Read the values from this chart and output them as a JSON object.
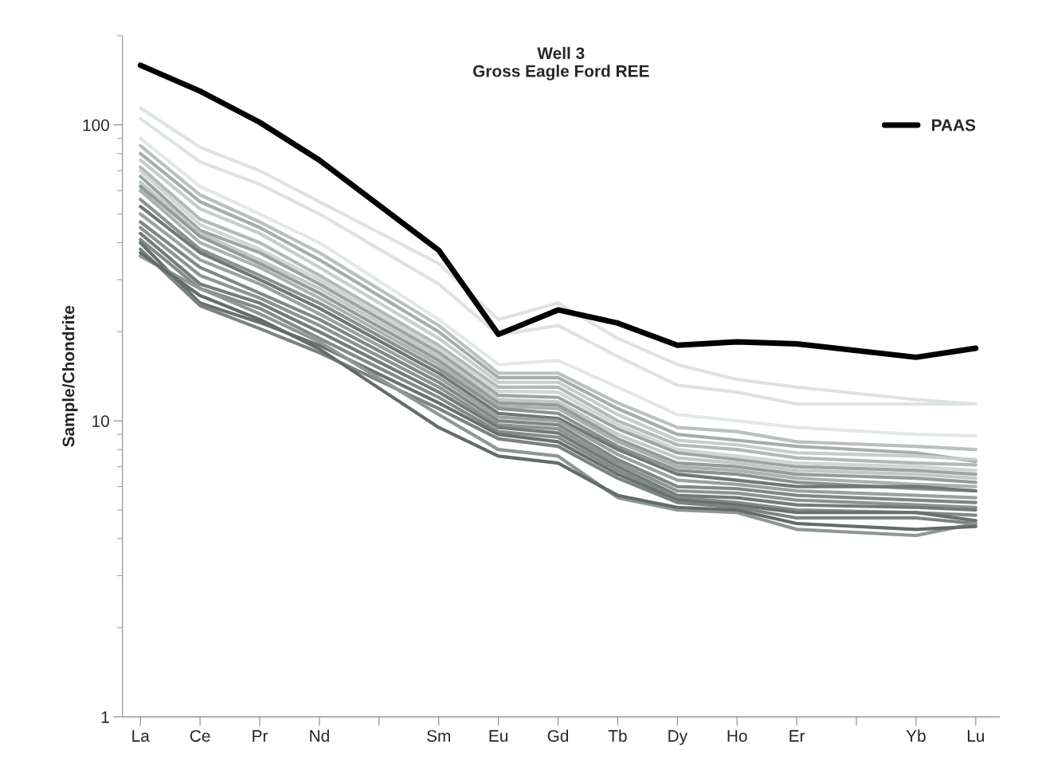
{
  "chart_data": {
    "type": "line",
    "title": "Well 3\nGross Eagle Ford REE",
    "ylabel": "Sample/Chondrite",
    "log": true,
    "ylim": [
      1,
      200
    ],
    "yticks": [
      1,
      10,
      100
    ],
    "grid": false,
    "legend": "top right",
    "marker": "none",
    "line_style": "solid",
    "categories": [
      "La",
      "Ce",
      "Pr",
      "Nd",
      null,
      "Sm",
      "Eu",
      "Gd",
      "Tb",
      "Dy",
      "Ho",
      "Er",
      null,
      "Yb",
      "Lu"
    ],
    "series": [
      {
        "color": "#dde3e1",
        "values": [
          114,
          84,
          70,
          55,
          null,
          34,
          22,
          25,
          19,
          15.5,
          13.8,
          13,
          null,
          11.8,
          11.4
        ]
      },
      {
        "color": "#dde3e1",
        "values": [
          105,
          75,
          63,
          50,
          null,
          29,
          19.5,
          21,
          16.5,
          13.2,
          12.5,
          11.4,
          null,
          11.4,
          11.4
        ]
      },
      {
        "color": "#e3e8e7",
        "values": [
          90,
          62,
          50,
          40,
          null,
          22,
          15.5,
          16,
          13,
          10.5,
          10,
          9.5,
          null,
          9,
          8.9
        ]
      },
      {
        "color": "#b9c0be",
        "values": [
          85,
          58,
          47,
          37,
          null,
          21,
          14.5,
          14.5,
          11.5,
          9.5,
          9.2,
          8.5,
          null,
          8.2,
          8.0
        ]
      },
      {
        "color": "#a6adab",
        "values": [
          80,
          55,
          45,
          35,
          null,
          20,
          14,
          14,
          11,
          9,
          8.6,
          8.2,
          null,
          7.8,
          7.3
        ]
      },
      {
        "color": "#c7cdcb",
        "values": [
          76,
          52,
          43,
          33,
          null,
          19,
          13.5,
          13.5,
          10.5,
          8.6,
          8.3,
          7.8,
          null,
          7.6,
          7.4
        ]
      },
      {
        "color": "#b2b9b7",
        "values": [
          72,
          48,
          40,
          31,
          null,
          18,
          13,
          13,
          10,
          8.3,
          8,
          7.5,
          null,
          7.2,
          7.1
        ]
      },
      {
        "color": "#d0d6d4",
        "values": [
          70,
          46,
          38,
          30,
          null,
          17.5,
          12.6,
          12.5,
          9.7,
          8.0,
          7.6,
          7.2,
          null,
          7.0,
          6.8
        ]
      },
      {
        "color": "#9da5a3",
        "values": [
          67,
          44,
          37,
          29,
          null,
          17,
          12.2,
          12,
          9.4,
          7.8,
          7.4,
          7.0,
          null,
          6.8,
          6.6
        ]
      },
      {
        "color": "#c2c8c6",
        "values": [
          64,
          43,
          35,
          28,
          null,
          16.5,
          11.8,
          11.6,
          9.0,
          7.5,
          7.2,
          6.8,
          null,
          6.6,
          6.4
        ]
      },
      {
        "color": "#949c9a",
        "values": [
          62,
          42,
          34,
          27,
          null,
          16,
          11.5,
          11.3,
          8.7,
          7.2,
          7.0,
          6.6,
          null,
          6.4,
          6.2
        ]
      },
      {
        "color": "#aab1af",
        "values": [
          60,
          40,
          33,
          26,
          null,
          15.5,
          11.2,
          11,
          8.5,
          7.0,
          6.8,
          6.4,
          null,
          6.1,
          6.0
        ]
      },
      {
        "color": "#8a9290",
        "values": [
          56,
          38,
          31,
          25,
          null,
          15,
          11,
          10.6,
          8.2,
          6.8,
          6.6,
          6.2,
          null,
          5.9,
          5.8
        ]
      },
      {
        "color": "#6f7876",
        "values": [
          53,
          37,
          30,
          24,
          null,
          14.5,
          10.6,
          10.2,
          8.0,
          6.6,
          6.3,
          6.0,
          null,
          6.0,
          5.8
        ]
      },
      {
        "color": "#9aa2a0",
        "values": [
          50,
          35,
          29,
          23,
          null,
          14,
          10.3,
          10,
          7.7,
          6.3,
          6.1,
          5.8,
          null,
          5.6,
          5.5
        ]
      },
      {
        "color": "#7f8886",
        "values": [
          47,
          33,
          27,
          22,
          null,
          13.5,
          10,
          9.7,
          7.4,
          6.0,
          5.9,
          5.6,
          null,
          5.4,
          5.3
        ]
      },
      {
        "color": "#8c9492",
        "values": [
          45,
          31,
          26,
          21,
          null,
          13,
          9.7,
          9.4,
          7.2,
          5.8,
          5.7,
          5.4,
          null,
          5.2,
          5.1
        ]
      },
      {
        "color": "#727b79",
        "values": [
          43,
          29,
          25,
          20,
          null,
          12.5,
          9.5,
          9.1,
          7.0,
          5.6,
          5.5,
          5.2,
          null,
          5.1,
          5.0
        ]
      },
      {
        "color": "#838b89",
        "values": [
          41,
          28,
          24,
          19,
          null,
          12,
          9.2,
          8.8,
          6.8,
          5.5,
          5.3,
          5.0,
          null,
          4.9,
          4.8
        ]
      },
      {
        "color": "#68716f",
        "values": [
          40,
          25,
          21.5,
          18,
          null,
          11.5,
          9.0,
          8.5,
          6.6,
          5.4,
          5.2,
          4.9,
          null,
          4.9,
          4.6
        ]
      },
      {
        "color": "#7a8381",
        "values": [
          38,
          24.5,
          20.5,
          17,
          null,
          11,
          8.7,
          8.2,
          6.4,
          5.3,
          5.1,
          4.7,
          null,
          4.7,
          4.5
        ]
      },
      {
        "color": "#8f9795",
        "values": [
          36,
          28,
          23,
          18.5,
          null,
          10.5,
          8.0,
          7.6,
          5.5,
          5.0,
          4.9,
          4.3,
          null,
          4.1,
          4.5
        ]
      },
      {
        "color": "#636c6a",
        "values": [
          37,
          26.5,
          22,
          17.5,
          null,
          9.5,
          7.6,
          7.2,
          5.6,
          5.1,
          5.0,
          4.5,
          null,
          4.3,
          4.4
        ]
      },
      {
        "name": "PAAS",
        "color": "#000000",
        "values": [
          159,
          130,
          102,
          76,
          null,
          37.7,
          19.6,
          23.7,
          21.4,
          18.0,
          18.5,
          18.2,
          null,
          16.4,
          17.6
        ]
      }
    ]
  }
}
